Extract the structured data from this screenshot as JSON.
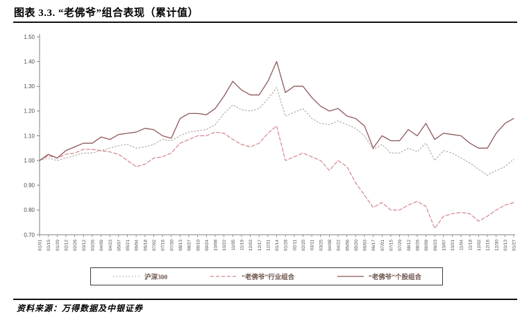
{
  "header": {
    "title": "图表 3.3. “老佛爷”组合表现（累计值）"
  },
  "footer": {
    "source": "资料来源：万得数据及中银证券"
  },
  "chart_data": {
    "type": "line",
    "title": "“老佛爷”组合表现（累计值）",
    "xlabel": "",
    "ylabel": "",
    "ylim": [
      0.7,
      1.5
    ],
    "ytick_step": 0.1,
    "ytick_labels": [
      "0.70",
      "0.80",
      "0.90",
      "1.00",
      "1.10",
      "1.20",
      "1.30",
      "1.40",
      "1.50"
    ],
    "grid": false,
    "legend_position": "bottom",
    "axis_color": "#808080",
    "tick_label_color": "#4d4d4d",
    "categories": [
      "01/01",
      "01/15",
      "01/29",
      "02/12",
      "02/26",
      "03/12",
      "03/26",
      "04/09",
      "04/23",
      "05/07",
      "05/21",
      "06/04",
      "06/18",
      "07/02",
      "07/16",
      "07/30",
      "08/13",
      "08/27",
      "09/10",
      "09/24",
      "10/08",
      "10/22",
      "11/05",
      "11/19",
      "12/03",
      "12/17",
      "12/31",
      "01/14",
      "01/28",
      "02/11",
      "02/25",
      "03/11",
      "03/25",
      "04/08",
      "04/22",
      "05/06",
      "05/20",
      "06/03",
      "06/17",
      "07/01",
      "07/15",
      "07/29",
      "08/12",
      "08/26",
      "09/09",
      "09/23",
      "10/07",
      "10/21",
      "11/04",
      "11/18",
      "12/02",
      "12/16",
      "12/30",
      "01/13",
      "01/27"
    ],
    "series": [
      {
        "name": "沪深300",
        "style": "dotted",
        "color": "#b3a8a4",
        "dash": "1.5 3",
        "width": 1.2,
        "values": [
          1.0,
          1.01,
          1.0,
          1.01,
          1.02,
          1.03,
          1.03,
          1.04,
          1.05,
          1.06,
          1.065,
          1.05,
          1.055,
          1.065,
          1.085,
          1.08,
          1.1,
          1.115,
          1.12,
          1.125,
          1.145,
          1.19,
          1.225,
          1.205,
          1.2,
          1.21,
          1.25,
          1.295,
          1.18,
          1.195,
          1.21,
          1.17,
          1.15,
          1.145,
          1.16,
          1.145,
          1.13,
          1.1,
          1.045,
          1.065,
          1.03,
          1.03,
          1.05,
          1.035,
          1.07,
          1.0,
          1.04,
          1.03,
          1.01,
          0.99,
          0.965,
          0.94,
          0.96,
          0.975,
          1.005
        ]
      },
      {
        "name": "“老佛爷”行业组合",
        "style": "dashed",
        "color": "#d4838b",
        "dash": "5 3",
        "width": 1.2,
        "values": [
          1.0,
          1.02,
          1.01,
          1.025,
          1.03,
          1.045,
          1.045,
          1.04,
          1.035,
          1.025,
          1.0,
          0.975,
          0.985,
          1.01,
          1.015,
          1.03,
          1.07,
          1.085,
          1.1,
          1.1,
          1.115,
          1.11,
          1.085,
          1.065,
          1.055,
          1.07,
          1.11,
          1.14,
          1.0,
          1.015,
          1.03,
          1.015,
          1.0,
          0.96,
          1.0,
          0.975,
          0.91,
          0.86,
          0.81,
          0.83,
          0.8,
          0.8,
          0.82,
          0.835,
          0.815,
          0.725,
          0.775,
          0.785,
          0.79,
          0.785,
          0.755,
          0.775,
          0.8,
          0.82,
          0.83
        ]
      },
      {
        "name": "“老佛爷”个股组合",
        "style": "solid",
        "color": "#8e575a",
        "dash": "",
        "width": 1.3,
        "values": [
          1.0,
          1.025,
          1.01,
          1.04,
          1.055,
          1.07,
          1.07,
          1.095,
          1.085,
          1.105,
          1.11,
          1.115,
          1.13,
          1.125,
          1.1,
          1.09,
          1.17,
          1.19,
          1.19,
          1.185,
          1.21,
          1.26,
          1.32,
          1.285,
          1.265,
          1.265,
          1.32,
          1.4,
          1.275,
          1.3,
          1.3,
          1.255,
          1.22,
          1.2,
          1.21,
          1.18,
          1.17,
          1.14,
          1.05,
          1.1,
          1.08,
          1.08,
          1.125,
          1.1,
          1.15,
          1.085,
          1.11,
          1.105,
          1.1,
          1.07,
          1.05,
          1.05,
          1.11,
          1.15,
          1.17
        ]
      }
    ]
  }
}
